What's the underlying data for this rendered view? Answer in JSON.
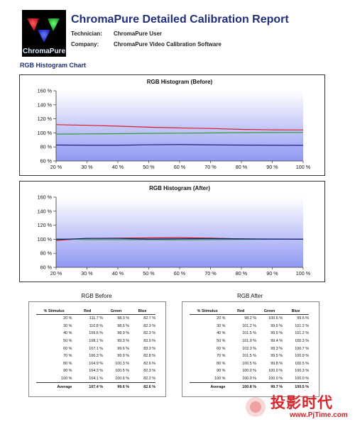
{
  "header": {
    "logo_text": "ChromaPure",
    "title": "ChromaPure Detailed Calibration Report",
    "technician_label": "Technician:",
    "technician_value": "ChromaPure User",
    "company_label": "Company:",
    "company_value": "ChromaPure Video Calibration Software"
  },
  "section_title": "RGB Histogram Chart",
  "colors": {
    "red": "#d81e2a",
    "green": "#2e9a3c",
    "blue": "#1a1a8c",
    "title": "#1f2f78"
  },
  "chart_data": [
    {
      "type": "line",
      "title": "RGB Histogram (Before)",
      "x": [
        20,
        30,
        40,
        50,
        60,
        70,
        80,
        90,
        100
      ],
      "x_tick_labels": [
        "20 %",
        "30 %",
        "40 %",
        "50 %",
        "60 %",
        "70 %",
        "80 %",
        "90 %",
        "100 %"
      ],
      "y_tick_labels": [
        "60 %",
        "80 %",
        "100 %",
        "120 %",
        "140 %",
        "160 %"
      ],
      "ylim": [
        60,
        160
      ],
      "series": [
        {
          "color": "red",
          "values": [
            111.7,
            110.8,
            109.6,
            108.1,
            107.1,
            106.3,
            104.9,
            104.3,
            104.1
          ]
        },
        {
          "color": "green",
          "values": [
            98.3,
            98.6,
            98.9,
            99.3,
            99.6,
            99.9,
            100.3,
            100.5,
            100.6
          ]
        },
        {
          "color": "blue",
          "values": [
            82.7,
            82.3,
            82.3,
            83.0,
            83.3,
            82.8,
            82.6,
            82.3,
            82.2
          ]
        }
      ]
    },
    {
      "type": "line",
      "title": "RGB Histogram (After)",
      "x": [
        20,
        30,
        40,
        50,
        60,
        70,
        80,
        90,
        100
      ],
      "x_tick_labels": [
        "20 %",
        "30 %",
        "40 %",
        "50 %",
        "60 %",
        "70 %",
        "80 %",
        "90 %",
        "100 %"
      ],
      "y_tick_labels": [
        "60 %",
        "80 %",
        "100 %",
        "120 %",
        "140 %",
        "160 %"
      ],
      "ylim": [
        60,
        160
      ],
      "series": [
        {
          "color": "red",
          "values": [
            98.2,
            101.2,
            101.5,
            101.9,
            102.3,
            101.5,
            100.5,
            100.0,
            100.0
          ]
        },
        {
          "color": "green",
          "values": [
            100.6,
            99.5,
            99.5,
            99.4,
            99.3,
            99.5,
            99.8,
            100.0,
            100.0
          ]
        },
        {
          "color": "blue",
          "values": [
            99.6,
            101.2,
            101.2,
            100.3,
            100.7,
            100.9,
            100.5,
            100.3,
            100.0
          ]
        }
      ]
    },
    {
      "type": "table",
      "title": "RGB Before",
      "columns": [
        "% Stimulus",
        "Red",
        "Green",
        "Blue"
      ],
      "rows": [
        [
          "20 %",
          "111.7 %",
          "98.3 %",
          "82.7 %"
        ],
        [
          "30 %",
          "110.8 %",
          "98.6 %",
          "82.3 %"
        ],
        [
          "40 %",
          "109.6 %",
          "98.9 %",
          "82.3 %"
        ],
        [
          "50 %",
          "108.1 %",
          "99.3 %",
          "83.0 %"
        ],
        [
          "60 %",
          "107.1 %",
          "99.6 %",
          "83.3 %"
        ],
        [
          "70 %",
          "106.3 %",
          "99.9 %",
          "82.8 %"
        ],
        [
          "80 %",
          "104.9 %",
          "100.3 %",
          "82.6 %"
        ],
        [
          "90 %",
          "104.3 %",
          "100.5 %",
          "82.3 %"
        ],
        [
          "100 %",
          "104.1 %",
          "100.6 %",
          "82.2 %"
        ]
      ],
      "average": [
        "Average",
        "107.4 %",
        "99.6 %",
        "82.6 %"
      ]
    },
    {
      "type": "table",
      "title": "RGB After",
      "columns": [
        "% Stimulus",
        "Red",
        "Green",
        "Blue"
      ],
      "rows": [
        [
          "20 %",
          "98.2 %",
          "100.6 %",
          "99.6 %"
        ],
        [
          "30 %",
          "101.2 %",
          "99.5 %",
          "101.2 %"
        ],
        [
          "40 %",
          "101.5 %",
          "99.5 %",
          "101.2 %"
        ],
        [
          "50 %",
          "101.9 %",
          "99.4 %",
          "100.3 %"
        ],
        [
          "60 %",
          "102.3 %",
          "99.3 %",
          "100.7 %"
        ],
        [
          "70 %",
          "101.5 %",
          "99.5 %",
          "100.9 %"
        ],
        [
          "80 %",
          "100.5 %",
          "99.8 %",
          "100.5 %"
        ],
        [
          "90 %",
          "100.0 %",
          "100.0 %",
          "100.3 %"
        ],
        [
          "100 %",
          "100.0 %",
          "100.0 %",
          "100.0 %"
        ]
      ],
      "average": [
        "Average",
        "100.8 %",
        "99.7 %",
        "100.5 %"
      ]
    }
  ],
  "watermark": {
    "chinese": "投影时代",
    "url": "www.PjTime.com"
  }
}
